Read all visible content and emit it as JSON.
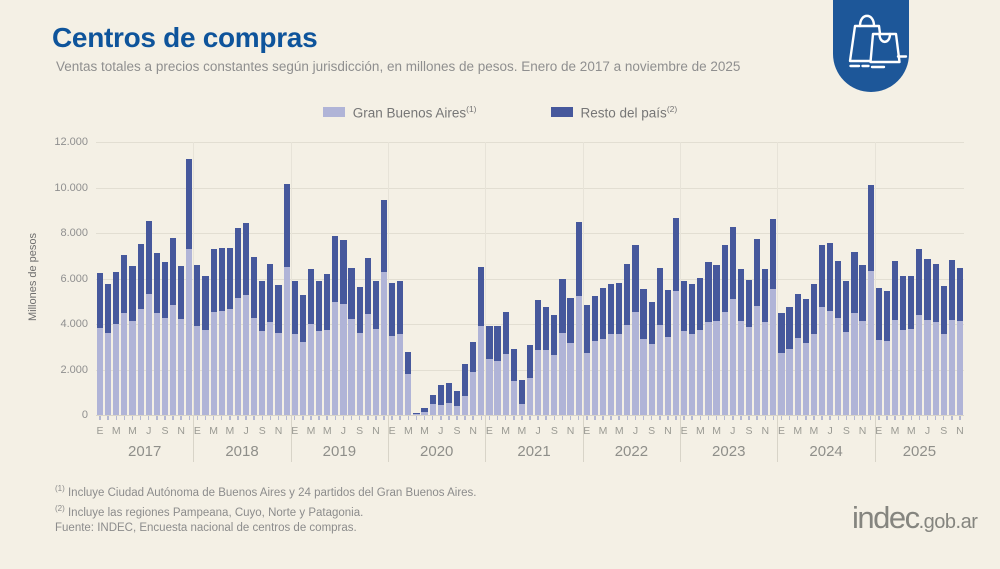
{
  "header": {
    "title": "Centros de compras",
    "subtitle": "Ventas totales a precios constantes según jurisdicción, en millones de pesos. Enero de 2017 a noviembre de 2025"
  },
  "badge_icon": "shopping-bags-icon",
  "legend": {
    "items": [
      {
        "label": "Gran Buenos Aires",
        "sup": "(1)",
        "color": "#b0b4d7"
      },
      {
        "label": "Resto del país",
        "sup": "(2)",
        "color": "#46589c"
      }
    ]
  },
  "chart_data": {
    "type": "bar",
    "stacked": true,
    "title": "Centros de compras",
    "xlabel": "",
    "ylabel": "Millones de pesos",
    "ylim": [
      0,
      12000
    ],
    "ytick_step": 2000,
    "ytick_labels": [
      "0",
      "2.000",
      "4.000",
      "6.000",
      "8.000",
      "10.000",
      "12.000"
    ],
    "grid": true,
    "legend_position": "top-center",
    "axis_month_letters": [
      "E",
      "M",
      "M",
      "J",
      "S",
      "N"
    ],
    "series_meta": [
      {
        "name": "Gran Buenos Aires (1)",
        "color": "#b0b4d7"
      },
      {
        "name": "Resto del país (2)",
        "color": "#46589c"
      }
    ],
    "years": [
      {
        "year": "2017",
        "gba": [
          3840,
          3590,
          4010,
          4490,
          4130,
          4680,
          5320,
          4490,
          4250,
          4850,
          4200,
          7290
        ],
        "resto": [
          2390,
          2160,
          2260,
          2540,
          2430,
          2830,
          3190,
          2610,
          2490,
          2930,
          2350,
          3970
        ]
      },
      {
        "year": "2018",
        "gba": [
          3910,
          3720,
          4540,
          4590,
          4680,
          5140,
          5260,
          4280,
          3700,
          4100,
          3620,
          6520
        ],
        "resto": [
          2680,
          2410,
          2750,
          2760,
          2640,
          3080,
          3190,
          2680,
          2170,
          2520,
          2100,
          3620
        ]
      },
      {
        "year": "2019",
        "gba": [
          3550,
          3230,
          3990,
          3700,
          3720,
          4970,
          4880,
          4200,
          3620,
          4450,
          3770,
          6300
        ],
        "resto": [
          2350,
          2060,
          2430,
          2170,
          2470,
          2880,
          2830,
          2280,
          1990,
          2460,
          2140,
          3160
        ]
      },
      {
        "year": "2020",
        "gba": [
          3490,
          3540,
          1790,
          40,
          120,
          470,
          440,
          510,
          410,
          850,
          1870,
          3900
        ],
        "resto": [
          2330,
          2350,
          980,
          60,
          200,
          405,
          870,
          900,
          640,
          1405,
          1360,
          2620
        ]
      },
      {
        "year": "2021",
        "gba": [
          2450,
          2360,
          2690,
          1480,
          500,
          1640,
          2870,
          2840,
          2620,
          3590,
          3160,
          5240
        ],
        "resto": [
          1480,
          1540,
          1820,
          1430,
          1030,
          1420,
          2180,
          1890,
          1760,
          2380,
          1980,
          3240
        ]
      },
      {
        "year": "2022",
        "gba": [
          2720,
          3270,
          3350,
          3570,
          3570,
          3970,
          4550,
          3350,
          3100,
          3970,
          3450,
          5430
        ],
        "resto": [
          2130,
          1970,
          2250,
          2210,
          2250,
          2680,
          2910,
          2180,
          1850,
          2480,
          2040,
          3230
        ]
      },
      {
        "year": "2023",
        "gba": [
          3680,
          3570,
          3740,
          4070,
          4120,
          4550,
          5120,
          4120,
          3860,
          4800,
          4100,
          5530
        ],
        "resto": [
          2210,
          2180,
          2270,
          2670,
          2470,
          2910,
          3140,
          2310,
          2090,
          2940,
          2300,
          3100
        ]
      },
      {
        "year": "2024",
        "gba": [
          2740,
          2910,
          3380,
          3160,
          3570,
          4760,
          4580,
          4250,
          3640,
          4470,
          4150,
          6330
        ],
        "resto": [
          1740,
          1850,
          1960,
          1960,
          2180,
          2730,
          2990,
          2540,
          2250,
          2700,
          2440,
          3780
        ]
      },
      {
        "year": "2025",
        "gba": [
          3300,
          3270,
          4180,
          3740,
          3780,
          4410,
          4180,
          4070,
          3540,
          4180,
          4120
        ],
        "resto": [
          2270,
          2190,
          2590,
          2370,
          2330,
          2870,
          2690,
          2580,
          2130,
          2630,
          2350
        ]
      }
    ]
  },
  "footnotes": [
    {
      "marker": "(1)",
      "text": "Incluye Ciudad Autónoma de Buenos Aires y 24 partidos del Gran Buenos Aires."
    },
    {
      "marker": "(2)",
      "text": "Incluye las regiones Pampeana, Cuyo, Norte y Patagonia."
    }
  ],
  "source": "Fuente: INDEC, Encuesta nacional de centros de compras.",
  "logo": {
    "main": "indec",
    "suffix": ".gob.ar"
  }
}
